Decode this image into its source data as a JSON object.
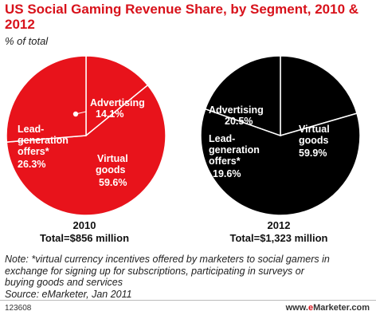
{
  "title": "US Social Gaming Revenue Share, by Segment, 2010 & 2012",
  "subtitle": "% of total",
  "chart_data": [
    {
      "type": "pie",
      "title": "",
      "year": "2010",
      "total_label": "Total=$856 million",
      "color": "#e8131b",
      "slices": [
        {
          "label": "Advertising",
          "value": 14.1
        },
        {
          "label": "Virtual goods",
          "value": 59.6
        },
        {
          "label": "Lead-generation offers*",
          "value": 26.3
        }
      ]
    },
    {
      "type": "pie",
      "title": "",
      "year": "2012",
      "total_label": "Total=$1,323 million",
      "color": "#000000",
      "slices": [
        {
          "label": "Advertising",
          "value": 20.5
        },
        {
          "label": "Virtual goods",
          "value": 59.9
        },
        {
          "label": "Lead-generation offers*",
          "value": 19.6
        }
      ]
    }
  ],
  "labels_2010": {
    "advertising": "Advertising",
    "advertising_value": "14.1%",
    "virtual_1": "Virtual",
    "virtual_2": "goods",
    "virtual_value": "59.6%",
    "lead_1": "Lead-",
    "lead_2": "generation",
    "lead_3": "offers*",
    "lead_value": "26.3%"
  },
  "labels_2012": {
    "advertising": "Advertising",
    "advertising_value": "20.5%",
    "virtual_1": "Virtual",
    "virtual_2": "goods",
    "virtual_value": "59.9%",
    "lead_1": "Lead-",
    "lead_2": "generation",
    "lead_3": "offers*",
    "lead_value": "19.6%"
  },
  "note_lines": [
    "Note: *virtual currency incentives offered by marketers to social gamers in",
    "exchange for signing up for subscriptions, participating in surveys or",
    "buying goods and services",
    "Source: eMarketer, Jan 2011"
  ],
  "footer": {
    "id": "123608",
    "brand_prefix": "www.",
    "brand_e": "e",
    "brand_suffix": "Marketer.com"
  },
  "colors": {
    "accent": "#d8121b",
    "pie_2010": "#e8131b",
    "pie_2012": "#000000"
  }
}
